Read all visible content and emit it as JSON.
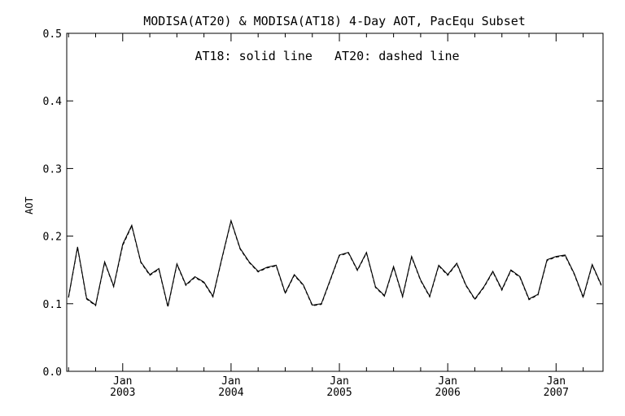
{
  "chart_data": {
    "type": "line",
    "title": "MODISA(AT20) & MODISA(AT18) 4-Day AOT, PacEqu Subset",
    "annotation": "AT18: solid line   AT20: dashed line",
    "ylabel": "AOT",
    "xlabel": "",
    "ylim": [
      0.0,
      0.5
    ],
    "xlim": [
      "2002-07",
      "2007-06"
    ],
    "yticks": [
      "0.0",
      "0.1",
      "0.2",
      "0.3",
      "0.4",
      "0.5"
    ],
    "xticks": [
      {
        "month": "Jan",
        "year": "2003",
        "date": "2003-01"
      },
      {
        "month": "Jan",
        "year": "2004",
        "date": "2004-01"
      },
      {
        "month": "Jan",
        "year": "2005",
        "date": "2005-01"
      },
      {
        "month": "Jan",
        "year": "2006",
        "date": "2006-01"
      },
      {
        "month": "Jan",
        "year": "2007",
        "date": "2007-01"
      }
    ],
    "grid": false,
    "x": [
      "2002-07",
      "2002-08",
      "2002-09",
      "2002-10",
      "2002-11",
      "2002-12",
      "2003-01",
      "2003-02",
      "2003-03",
      "2003-04",
      "2003-05",
      "2003-06",
      "2003-07",
      "2003-08",
      "2003-09",
      "2003-10",
      "2003-11",
      "2003-12",
      "2004-01",
      "2004-02",
      "2004-03",
      "2004-04",
      "2004-05",
      "2004-06",
      "2004-07",
      "2004-08",
      "2004-09",
      "2004-10",
      "2004-11",
      "2004-12",
      "2005-01",
      "2005-02",
      "2005-03",
      "2005-04",
      "2005-05",
      "2005-06",
      "2005-07",
      "2005-08",
      "2005-09",
      "2005-10",
      "2005-11",
      "2005-12",
      "2006-01",
      "2006-02",
      "2006-03",
      "2006-04",
      "2006-05",
      "2006-06",
      "2006-07",
      "2006-08",
      "2006-09",
      "2006-10",
      "2006-11",
      "2006-12",
      "2007-01",
      "2007-02",
      "2007-03",
      "2007-04",
      "2007-05",
      "2007-06"
    ],
    "series": [
      {
        "name": "AT18",
        "style": "solid",
        "values": [
          0.11,
          0.184,
          0.108,
          0.098,
          0.162,
          0.126,
          0.188,
          0.216,
          0.162,
          0.143,
          0.152,
          0.096,
          0.159,
          0.128,
          0.14,
          0.132,
          0.111,
          0.168,
          0.223,
          0.182,
          0.162,
          0.148,
          0.154,
          0.157,
          0.116,
          0.143,
          0.128,
          0.098,
          0.1,
          0.136,
          0.172,
          0.176,
          0.15,
          0.176,
          0.125,
          0.112,
          0.155,
          0.111,
          0.17,
          0.135,
          0.111,
          0.157,
          0.143,
          0.16,
          0.128,
          0.107,
          0.125,
          0.148,
          0.121,
          0.15,
          0.14,
          0.107,
          0.114,
          0.165,
          0.17,
          0.172,
          0.145,
          0.11,
          0.158,
          0.128
        ]
      },
      {
        "name": "AT20",
        "style": "dashed",
        "values": [
          0.109,
          0.183,
          0.107,
          0.097,
          0.161,
          0.125,
          0.186,
          0.215,
          0.161,
          0.142,
          0.151,
          0.095,
          0.158,
          0.127,
          0.139,
          0.131,
          0.11,
          0.167,
          0.222,
          0.181,
          0.161,
          0.147,
          0.153,
          0.156,
          0.115,
          0.142,
          0.127,
          0.097,
          0.099,
          0.135,
          0.171,
          0.175,
          0.149,
          0.175,
          0.124,
          0.111,
          0.154,
          0.11,
          0.169,
          0.134,
          0.11,
          0.156,
          0.142,
          0.159,
          0.127,
          0.106,
          0.124,
          0.147,
          0.12,
          0.149,
          0.139,
          0.106,
          0.113,
          0.164,
          0.169,
          0.171,
          0.144,
          0.109,
          0.157,
          0.127
        ]
      }
    ]
  }
}
